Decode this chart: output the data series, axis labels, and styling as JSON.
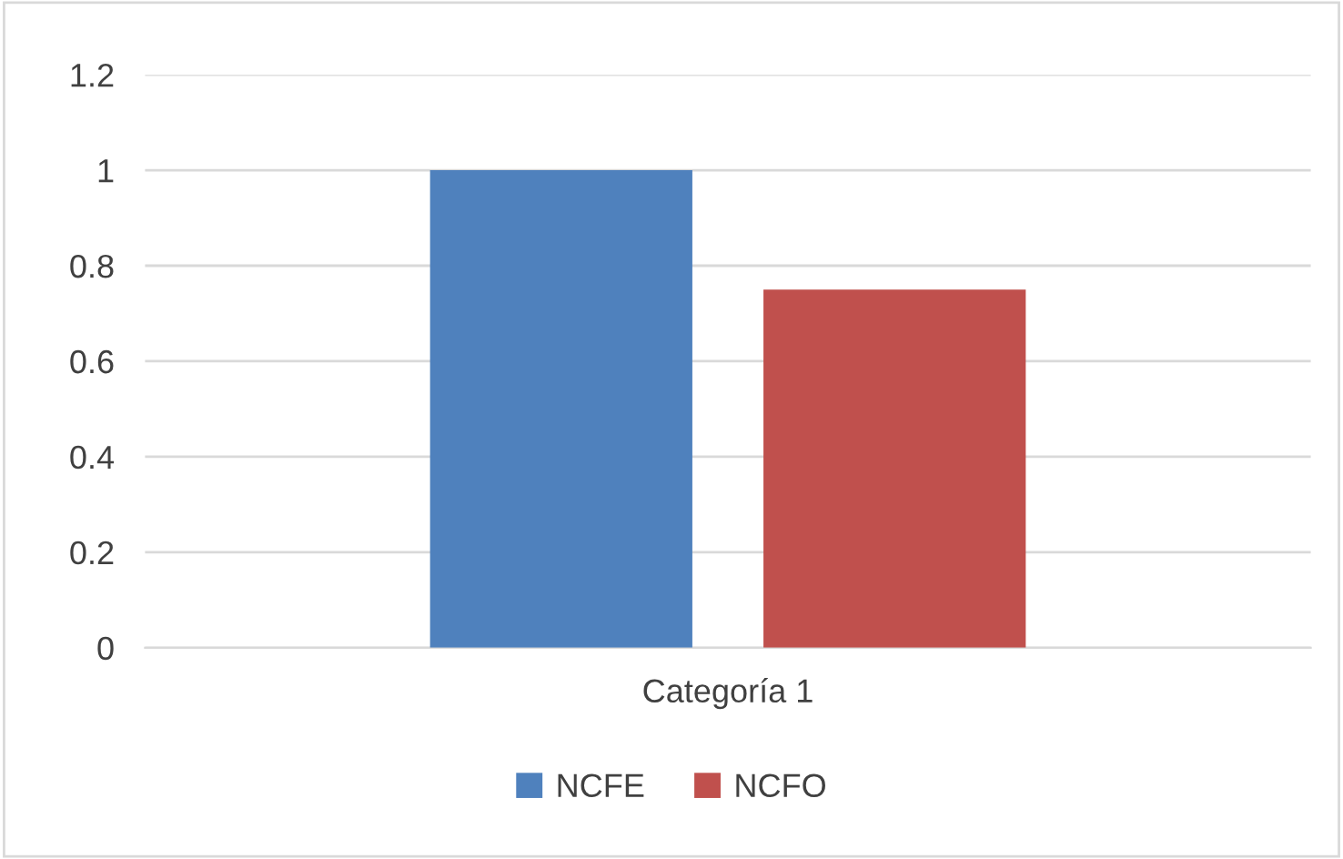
{
  "chart_data": {
    "type": "bar",
    "categories": [
      "Categoría 1"
    ],
    "series": [
      {
        "name": "NCFE",
        "color": "#4f81bd",
        "values": [
          1
        ]
      },
      {
        "name": "NCFO",
        "color": "#c0504d",
        "values": [
          0.75
        ]
      }
    ],
    "ylim": [
      0,
      1.2
    ],
    "yticks": [
      0,
      0.2,
      0.4,
      0.6,
      0.8,
      1,
      1.2
    ],
    "grid": "y",
    "legend": "bottom"
  }
}
